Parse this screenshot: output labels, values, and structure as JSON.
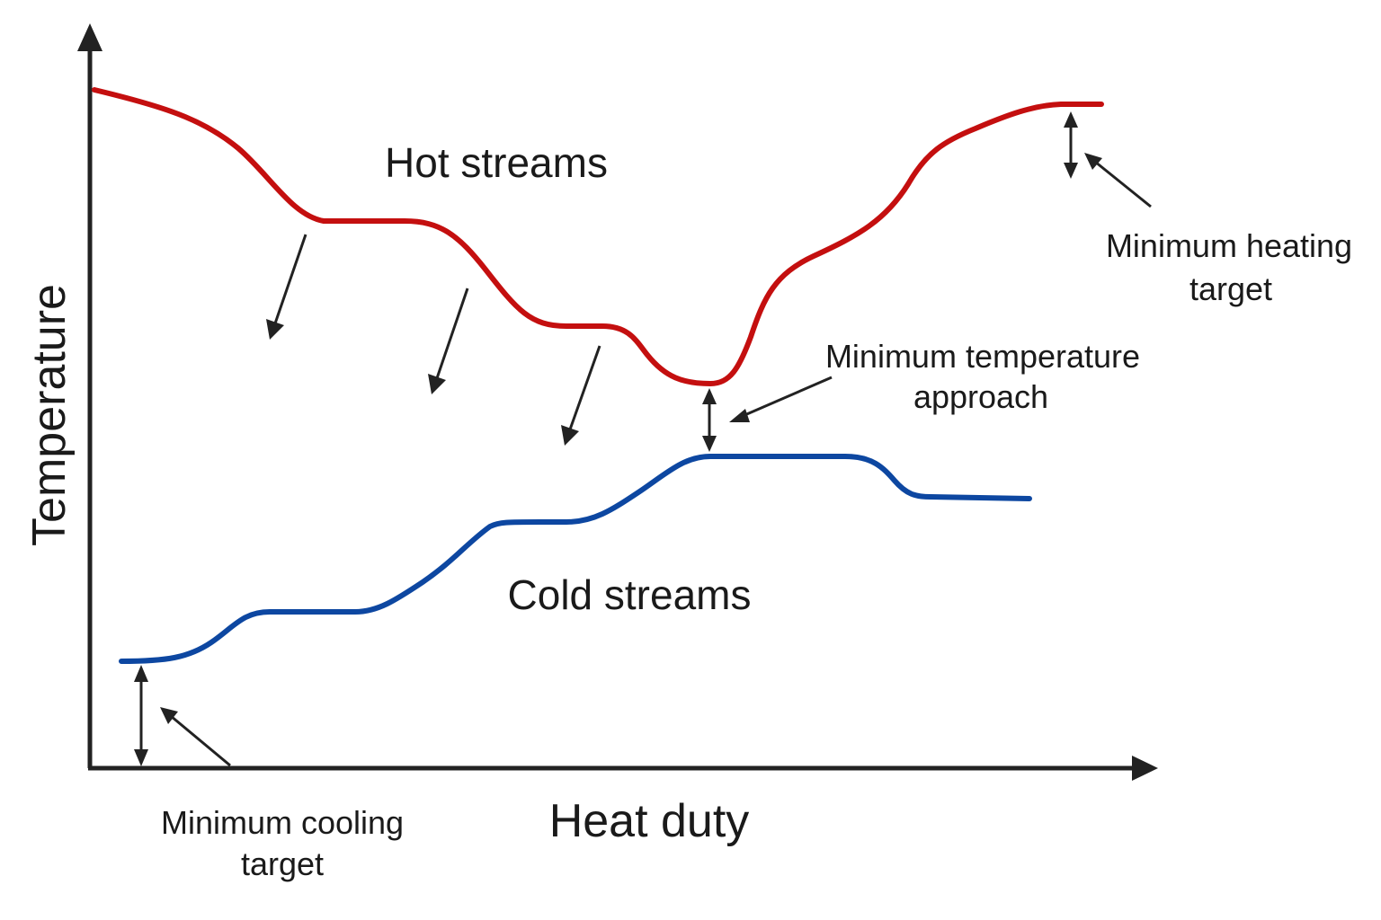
{
  "axes": {
    "x_label": "Heat duty",
    "y_label": "Temperature"
  },
  "curves": {
    "hot": {
      "label": "Hot streams",
      "color": "#c40f0f"
    },
    "cold": {
      "label": "Cold streams",
      "color": "#0d47a1"
    }
  },
  "annotations": {
    "min_heating": {
      "line1": "Minimum heating",
      "line2": "target"
    },
    "min_approach": {
      "line1": "Minimum temperature",
      "line2": "approach"
    },
    "min_cooling": {
      "line1": "Minimum cooling",
      "line2": "target"
    }
  },
  "colors": {
    "axis": "#222222",
    "text": "#1a1a1a",
    "background": "#ffffff"
  }
}
